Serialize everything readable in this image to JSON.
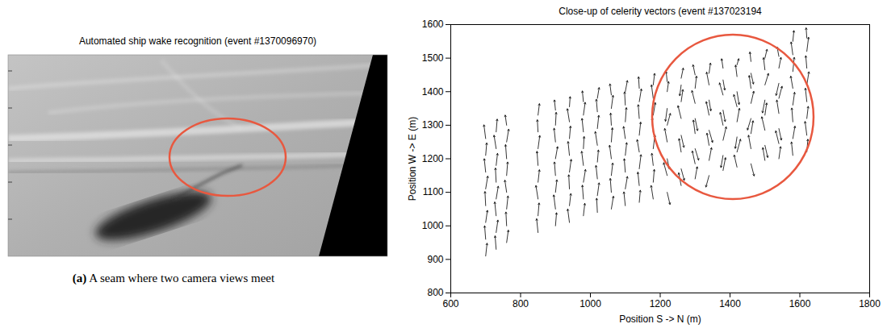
{
  "chart_data": [
    {
      "type": "image",
      "title": "Automated ship wake recognition (event #1370096970)",
      "caption": "(a) A seam where two camera views meet"
    },
    {
      "type": "quiver",
      "title": "Close-up of celerity vectors (event #137023194",
      "xlabel": "Position S -> N (m)",
      "ylabel": "Position W -> E (m)",
      "xlim": [
        600,
        1800
      ],
      "xticks": [
        600,
        800,
        1000,
        1200,
        1400,
        1600,
        1800
      ],
      "ylim": [
        800,
        1600
      ],
      "yticks": [
        800,
        900,
        1000,
        1100,
        1200,
        1300,
        1400,
        1500,
        1600
      ],
      "grid": false,
      "color": "#000000",
      "columns": [
        {
          "x": 700,
          "y": [
            910,
            960,
            1010,
            1060,
            1110,
            1160,
            1210,
            1260
          ],
          "dx": [
            4,
            -3,
            5,
            -2,
            6,
            -4,
            3,
            -5
          ],
          "dy": [
            38,
            40,
            36,
            42,
            38,
            40,
            37,
            41
          ]
        },
        {
          "x": 730,
          "y": [
            930,
            980,
            1030,
            1080,
            1130,
            1180,
            1230,
            1280
          ],
          "dx": [
            -3,
            5,
            -4,
            6,
            -2,
            4,
            -6,
            3
          ],
          "dy": [
            40,
            37,
            41,
            38,
            42,
            36,
            40,
            38
          ]
        },
        {
          "x": 760,
          "y": [
            950,
            1000,
            1050,
            1100,
            1150,
            1200,
            1250,
            1300
          ],
          "dx": [
            5,
            -2,
            4,
            -5,
            3,
            -3,
            6,
            -4
          ],
          "dy": [
            37,
            41,
            39,
            36,
            40,
            42,
            38,
            30
          ]
        },
        {
          "x": 850,
          "y": [
            980,
            1030,
            1080,
            1130,
            1180,
            1230,
            1280,
            1330
          ],
          "dx": [
            -4,
            3,
            -6,
            4,
            -3,
            5,
            -2,
            4
          ],
          "dy": [
            41,
            38,
            40,
            37,
            42,
            39,
            36,
            34
          ]
        },
        {
          "x": 900,
          "y": [
            1000,
            1050,
            1100,
            1150,
            1200,
            1250,
            1300,
            1345
          ],
          "dx": [
            3,
            -5,
            4,
            -3,
            6,
            -4,
            2,
            -3
          ],
          "dy": [
            39,
            42,
            37,
            40,
            36,
            41,
            38,
            30
          ]
        },
        {
          "x": 940,
          "y": [
            1010,
            1060,
            1110,
            1160,
            1210,
            1260,
            1310,
            1355
          ],
          "dx": [
            -5,
            4,
            -2,
            5,
            -4,
            3,
            -6,
            2
          ],
          "dy": [
            40,
            36,
            42,
            38,
            41,
            37,
            39,
            30
          ]
        },
        {
          "x": 980,
          "y": [
            1030,
            1080,
            1130,
            1180,
            1230,
            1280,
            1330,
            1370
          ],
          "dx": [
            4,
            -3,
            6,
            -5,
            2,
            -4,
            5,
            -3
          ],
          "dy": [
            37,
            41,
            38,
            42,
            36,
            40,
            38,
            32
          ]
        },
        {
          "x": 1020,
          "y": [
            1040,
            1090,
            1140,
            1190,
            1240,
            1290,
            1340,
            1380
          ],
          "dx": [
            -2,
            5,
            -4,
            3,
            -6,
            4,
            -3,
            5
          ],
          "dy": [
            42,
            38,
            40,
            36,
            41,
            39,
            37,
            32
          ]
        },
        {
          "x": 1060,
          "y": [
            1050,
            1100,
            1150,
            1200,
            1250,
            1300,
            1350,
            1390
          ],
          "dx": [
            6,
            -3,
            4,
            -5,
            3,
            -2,
            5,
            -4
          ],
          "dy": [
            38,
            41,
            37,
            40,
            42,
            36,
            39,
            33
          ]
        },
        {
          "x": 1100,
          "y": [
            1060,
            1110,
            1160,
            1210,
            1260,
            1310,
            1360,
            1400
          ],
          "dx": [
            -4,
            6,
            -3,
            4,
            -5,
            3,
            -2,
            6
          ],
          "dy": [
            41,
            37,
            40,
            38,
            36,
            42,
            39,
            33
          ]
        },
        {
          "x": 1140,
          "y": [
            1070,
            1120,
            1170,
            1220,
            1270,
            1320,
            1370,
            1410
          ],
          "dx": [
            3,
            -4,
            5,
            -6,
            4,
            -3,
            6,
            -2
          ],
          "dy": [
            36,
            40,
            42,
            37,
            39,
            41,
            38,
            34
          ]
        },
        {
          "x": 1180,
          "y": [
            1080,
            1130,
            1180,
            1230,
            1280,
            1330,
            1380,
            1420
          ],
          "dx": [
            -6,
            3,
            -4,
            5,
            -3,
            6,
            -5,
            4
          ],
          "dy": [
            40,
            38,
            36,
            41,
            42,
            37,
            40,
            34
          ]
        },
        {
          "x": 1220,
          "y": [
            1100,
            1150,
            1200,
            1250,
            1300,
            1350,
            1400,
            1430
          ],
          "dx": [
            8,
            -10,
            6,
            -7,
            9,
            -5,
            4,
            -3
          ],
          "dy": [
            -36,
            38,
            -30,
            40,
            35,
            -38,
            30,
            30
          ]
        },
        {
          "x": 1260,
          "y": [
            1120,
            1170,
            1220,
            1270,
            1320,
            1370,
            1420,
            1440
          ],
          "dx": [
            -7,
            9,
            -6,
            8,
            -9,
            5,
            -4,
            6
          ],
          "dy": [
            38,
            -34,
            40,
            -36,
            38,
            36,
            -32,
            30
          ]
        },
        {
          "x": 1300,
          "y": [
            1140,
            1185,
            1230,
            1275,
            1320,
            1365,
            1410,
            1450
          ],
          "dx": [
            6,
            -8,
            10,
            -5,
            7,
            -9,
            4,
            -6
          ],
          "dy": [
            36,
            38,
            -34,
            40,
            -36,
            38,
            36,
            30
          ]
        },
        {
          "x": 1340,
          "y": [
            1150,
            1195,
            1240,
            1285,
            1330,
            1375,
            1420,
            1455
          ],
          "dx": [
            -9,
            7,
            -6,
            10,
            -8,
            5,
            -7,
            4
          ],
          "dy": [
            -34,
            38,
            36,
            -36,
            40,
            -32,
            38,
            30
          ]
        },
        {
          "x": 1380,
          "y": [
            1165,
            1210,
            1255,
            1300,
            1345,
            1390,
            1435,
            1470
          ],
          "dx": [
            7,
            -6,
            9,
            -8,
            6,
            -10,
            5,
            -4
          ],
          "dy": [
            38,
            -36,
            40,
            38,
            -34,
            36,
            -30,
            28
          ]
        },
        {
          "x": 1420,
          "y": [
            1175,
            1220,
            1265,
            1310,
            1355,
            1400,
            1445,
            1480
          ],
          "dx": [
            -8,
            10,
            -5,
            7,
            -9,
            6,
            -4,
            5
          ],
          "dy": [
            36,
            38,
            -34,
            40,
            36,
            -38,
            34,
            18
          ]
        },
        {
          "x": 1460,
          "y": [
            1185,
            1230,
            1275,
            1320,
            1365,
            1410,
            1455,
            1490
          ],
          "dx": [
            9,
            -7,
            6,
            -10,
            8,
            -5,
            7,
            -3
          ],
          "dy": [
            -36,
            40,
            38,
            -34,
            36,
            38,
            -32,
            28
          ]
        },
        {
          "x": 1500,
          "y": [
            1195,
            1240,
            1285,
            1330,
            1375,
            1420,
            1465,
            1500
          ],
          "dx": [
            -6,
            8,
            -9,
            5,
            -7,
            10,
            -4,
            6
          ],
          "dy": [
            38,
            -36,
            40,
            36,
            -38,
            34,
            36,
            26
          ]
        },
        {
          "x": 1540,
          "y": [
            1200,
            1245,
            1290,
            1335,
            1380,
            1425,
            1470,
            1505
          ],
          "dx": [
            5,
            -9,
            7,
            -6,
            9,
            -8,
            6,
            -5
          ],
          "dy": [
            36,
            38,
            -34,
            40,
            36,
            -36,
            32,
            28
          ]
        },
        {
          "x": 1580,
          "y": [
            1210,
            1260,
            1310,
            1360,
            1410,
            1460,
            1510,
            1550
          ],
          "dx": [
            -4,
            6,
            -3,
            5,
            -6,
            4,
            -5,
            3
          ],
          "dy": [
            40,
            37,
            41,
            38,
            36,
            42,
            38,
            32
          ]
        },
        {
          "x": 1620,
          "y": [
            1220,
            1270,
            1320,
            1370,
            1420,
            1470,
            1520,
            1560
          ],
          "dx": [
            3,
            -5,
            4,
            -4,
            6,
            -3,
            5,
            -2
          ],
          "dy": [
            38,
            41,
            36,
            40,
            39,
            37,
            42,
            30
          ]
        }
      ]
    }
  ]
}
